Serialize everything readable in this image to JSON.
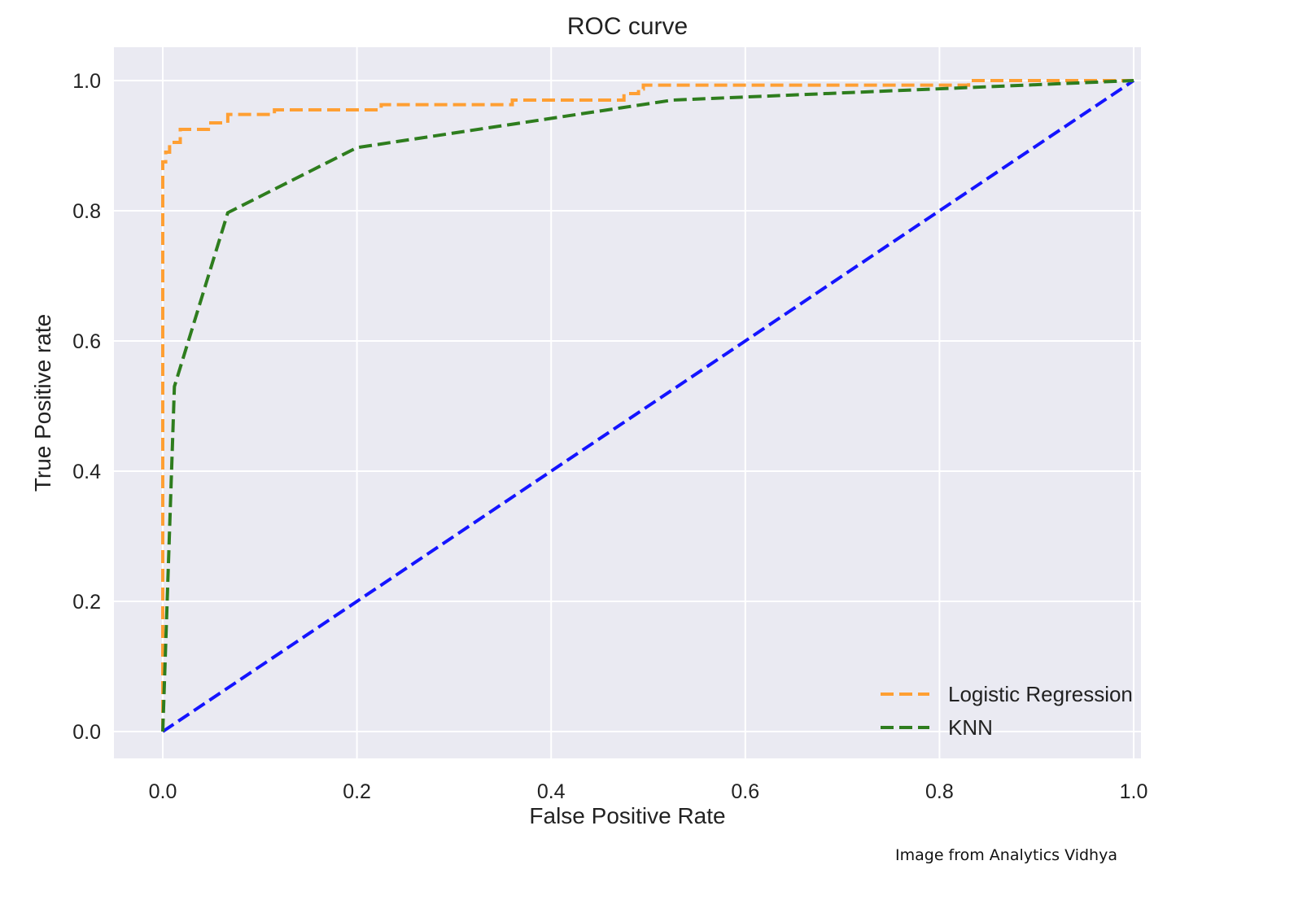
{
  "chart_data": {
    "type": "line",
    "title": "ROC curve",
    "xlabel": "False Positive Rate",
    "ylabel": "True Positive rate",
    "xlim": [
      -0.05,
      1.05
    ],
    "ylim": [
      -0.05,
      1.05
    ],
    "xticks": [
      0.0,
      0.2,
      0.4,
      0.6,
      0.8,
      1.0
    ],
    "yticks": [
      0.0,
      0.2,
      0.4,
      0.6,
      0.8,
      1.0
    ],
    "xtick_labels": [
      "0.0",
      "0.2",
      "0.4",
      "0.6",
      "0.8",
      "1.0"
    ],
    "ytick_labels": [
      "0.0",
      "0.2",
      "0.4",
      "0.6",
      "0.8",
      "1.0"
    ],
    "grid": true,
    "background_color": "#eaeaf2",
    "legend_position": "lower-right",
    "series": [
      {
        "name": "Logistic Regression",
        "color": "#ff9f33",
        "style": "dashed",
        "x": [
          0.0,
          0.0,
          0.003,
          0.003,
          0.007,
          0.007,
          0.018,
          0.018,
          0.047,
          0.047,
          0.067,
          0.067,
          0.115,
          0.115,
          0.2,
          0.225,
          0.225,
          0.36,
          0.36,
          0.475,
          0.475,
          0.49,
          0.49,
          0.495,
          0.495,
          0.83,
          0.83,
          1.0
        ],
        "y": [
          0.0,
          0.875,
          0.875,
          0.89,
          0.89,
          0.905,
          0.905,
          0.925,
          0.925,
          0.935,
          0.935,
          0.948,
          0.948,
          0.955,
          0.955,
          0.955,
          0.963,
          0.963,
          0.97,
          0.97,
          0.98,
          0.98,
          0.987,
          0.987,
          0.993,
          0.993,
          1.0,
          1.0
        ]
      },
      {
        "name": "KNN",
        "color": "#2e7d1e",
        "style": "dashed",
        "x": [
          0.0,
          0.012,
          0.067,
          0.2,
          0.525,
          1.0
        ],
        "y": [
          0.0,
          0.53,
          0.797,
          0.897,
          0.97,
          1.0
        ]
      },
      {
        "name": "",
        "color": "#1414ff",
        "style": "dashed",
        "x": [
          0.0,
          1.0
        ],
        "y": [
          0.0,
          1.0
        ]
      }
    ]
  },
  "credit": "Image from Analytics Vidhya"
}
